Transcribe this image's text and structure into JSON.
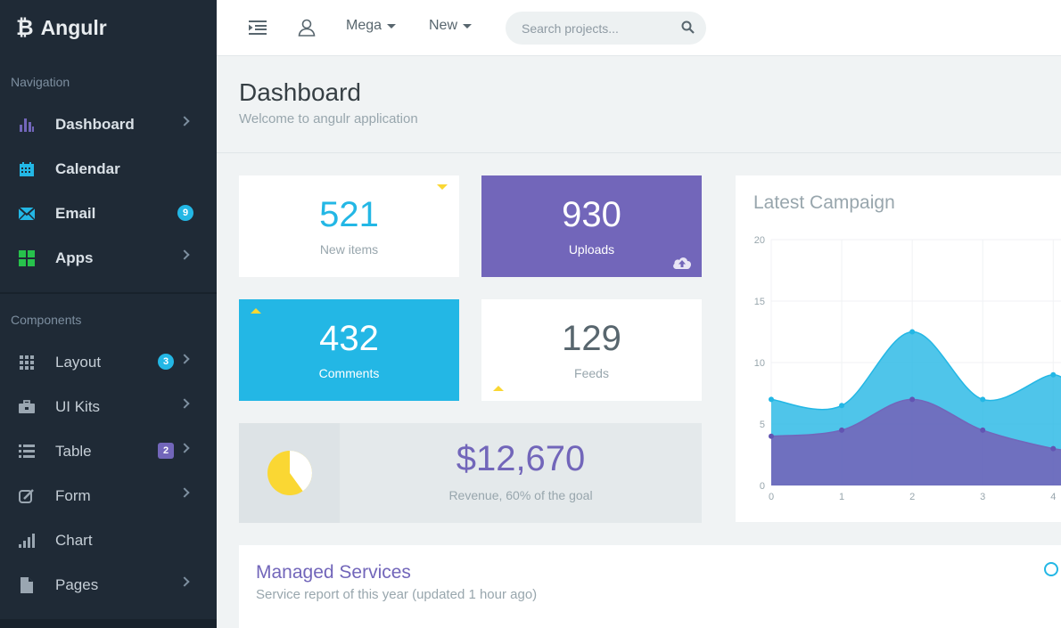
{
  "app": {
    "name": "Angulr",
    "logo_glyph": "₿"
  },
  "sidebar": {
    "sections": [
      {
        "label": "Navigation"
      },
      {
        "label": "Components"
      }
    ],
    "nav": [
      {
        "label": "Dashboard",
        "icon": "bar-chart-icon",
        "color": "#7266ba",
        "has_chevron": true,
        "badge": ""
      },
      {
        "label": "Calendar",
        "icon": "calendar-icon",
        "color": "#23b7e5",
        "has_chevron": false,
        "badge": ""
      },
      {
        "label": "Email",
        "icon": "envelope-icon",
        "color": "#23b7e5",
        "has_chevron": false,
        "badge": "9"
      },
      {
        "label": "Apps",
        "icon": "grid-icon",
        "color": "#27c24c",
        "has_chevron": true,
        "badge": ""
      }
    ],
    "components": [
      {
        "label": "Layout",
        "icon": "grid-dots-icon",
        "has_chevron": true,
        "badge": "3"
      },
      {
        "label": "UI Kits",
        "icon": "briefcase-icon",
        "has_chevron": true,
        "badge": ""
      },
      {
        "label": "Table",
        "icon": "list-icon",
        "has_chevron": true,
        "badge": "2"
      },
      {
        "label": "Form",
        "icon": "edit-icon",
        "has_chevron": true,
        "badge": ""
      },
      {
        "label": "Chart",
        "icon": "signal-icon",
        "has_chevron": false,
        "badge": ""
      },
      {
        "label": "Pages",
        "icon": "file-icon",
        "has_chevron": true,
        "badge": ""
      }
    ]
  },
  "topbar": {
    "mega_label": "Mega",
    "new_label": "New",
    "search_placeholder": "Search projects..."
  },
  "header": {
    "title": "Dashboard",
    "subtitle": "Welcome to angulr application"
  },
  "stats": {
    "new_items": {
      "value": "521",
      "label": "New items"
    },
    "uploads": {
      "value": "930",
      "label": "Uploads"
    },
    "comments": {
      "value": "432",
      "label": "Comments"
    },
    "feeds": {
      "value": "129",
      "label": "Feeds"
    }
  },
  "revenue": {
    "amount": "$12,670",
    "caption": "Revenue, 60% of the goal",
    "goal_fraction": 0.6
  },
  "campaign": {
    "title": "Latest Campaign"
  },
  "chart_data": {
    "type": "area",
    "title": "Latest Campaign",
    "x": [
      0,
      1,
      2,
      3,
      4
    ],
    "series": [
      {
        "values": [
          7,
          6.5,
          12.5,
          7,
          9
        ],
        "color": "#23b7e5"
      },
      {
        "values": [
          4,
          4.5,
          7,
          4.5,
          3
        ],
        "color": "#7266ba"
      }
    ],
    "xlim": [
      0,
      4.3
    ],
    "ylim": [
      0,
      20
    ],
    "yticks": [
      0,
      5,
      10,
      15,
      20
    ],
    "xticks": [
      0,
      1,
      2,
      3,
      4
    ]
  },
  "services": {
    "title": "Managed Services",
    "subtitle": "Service report of this year (updated 1 hour ago)"
  }
}
